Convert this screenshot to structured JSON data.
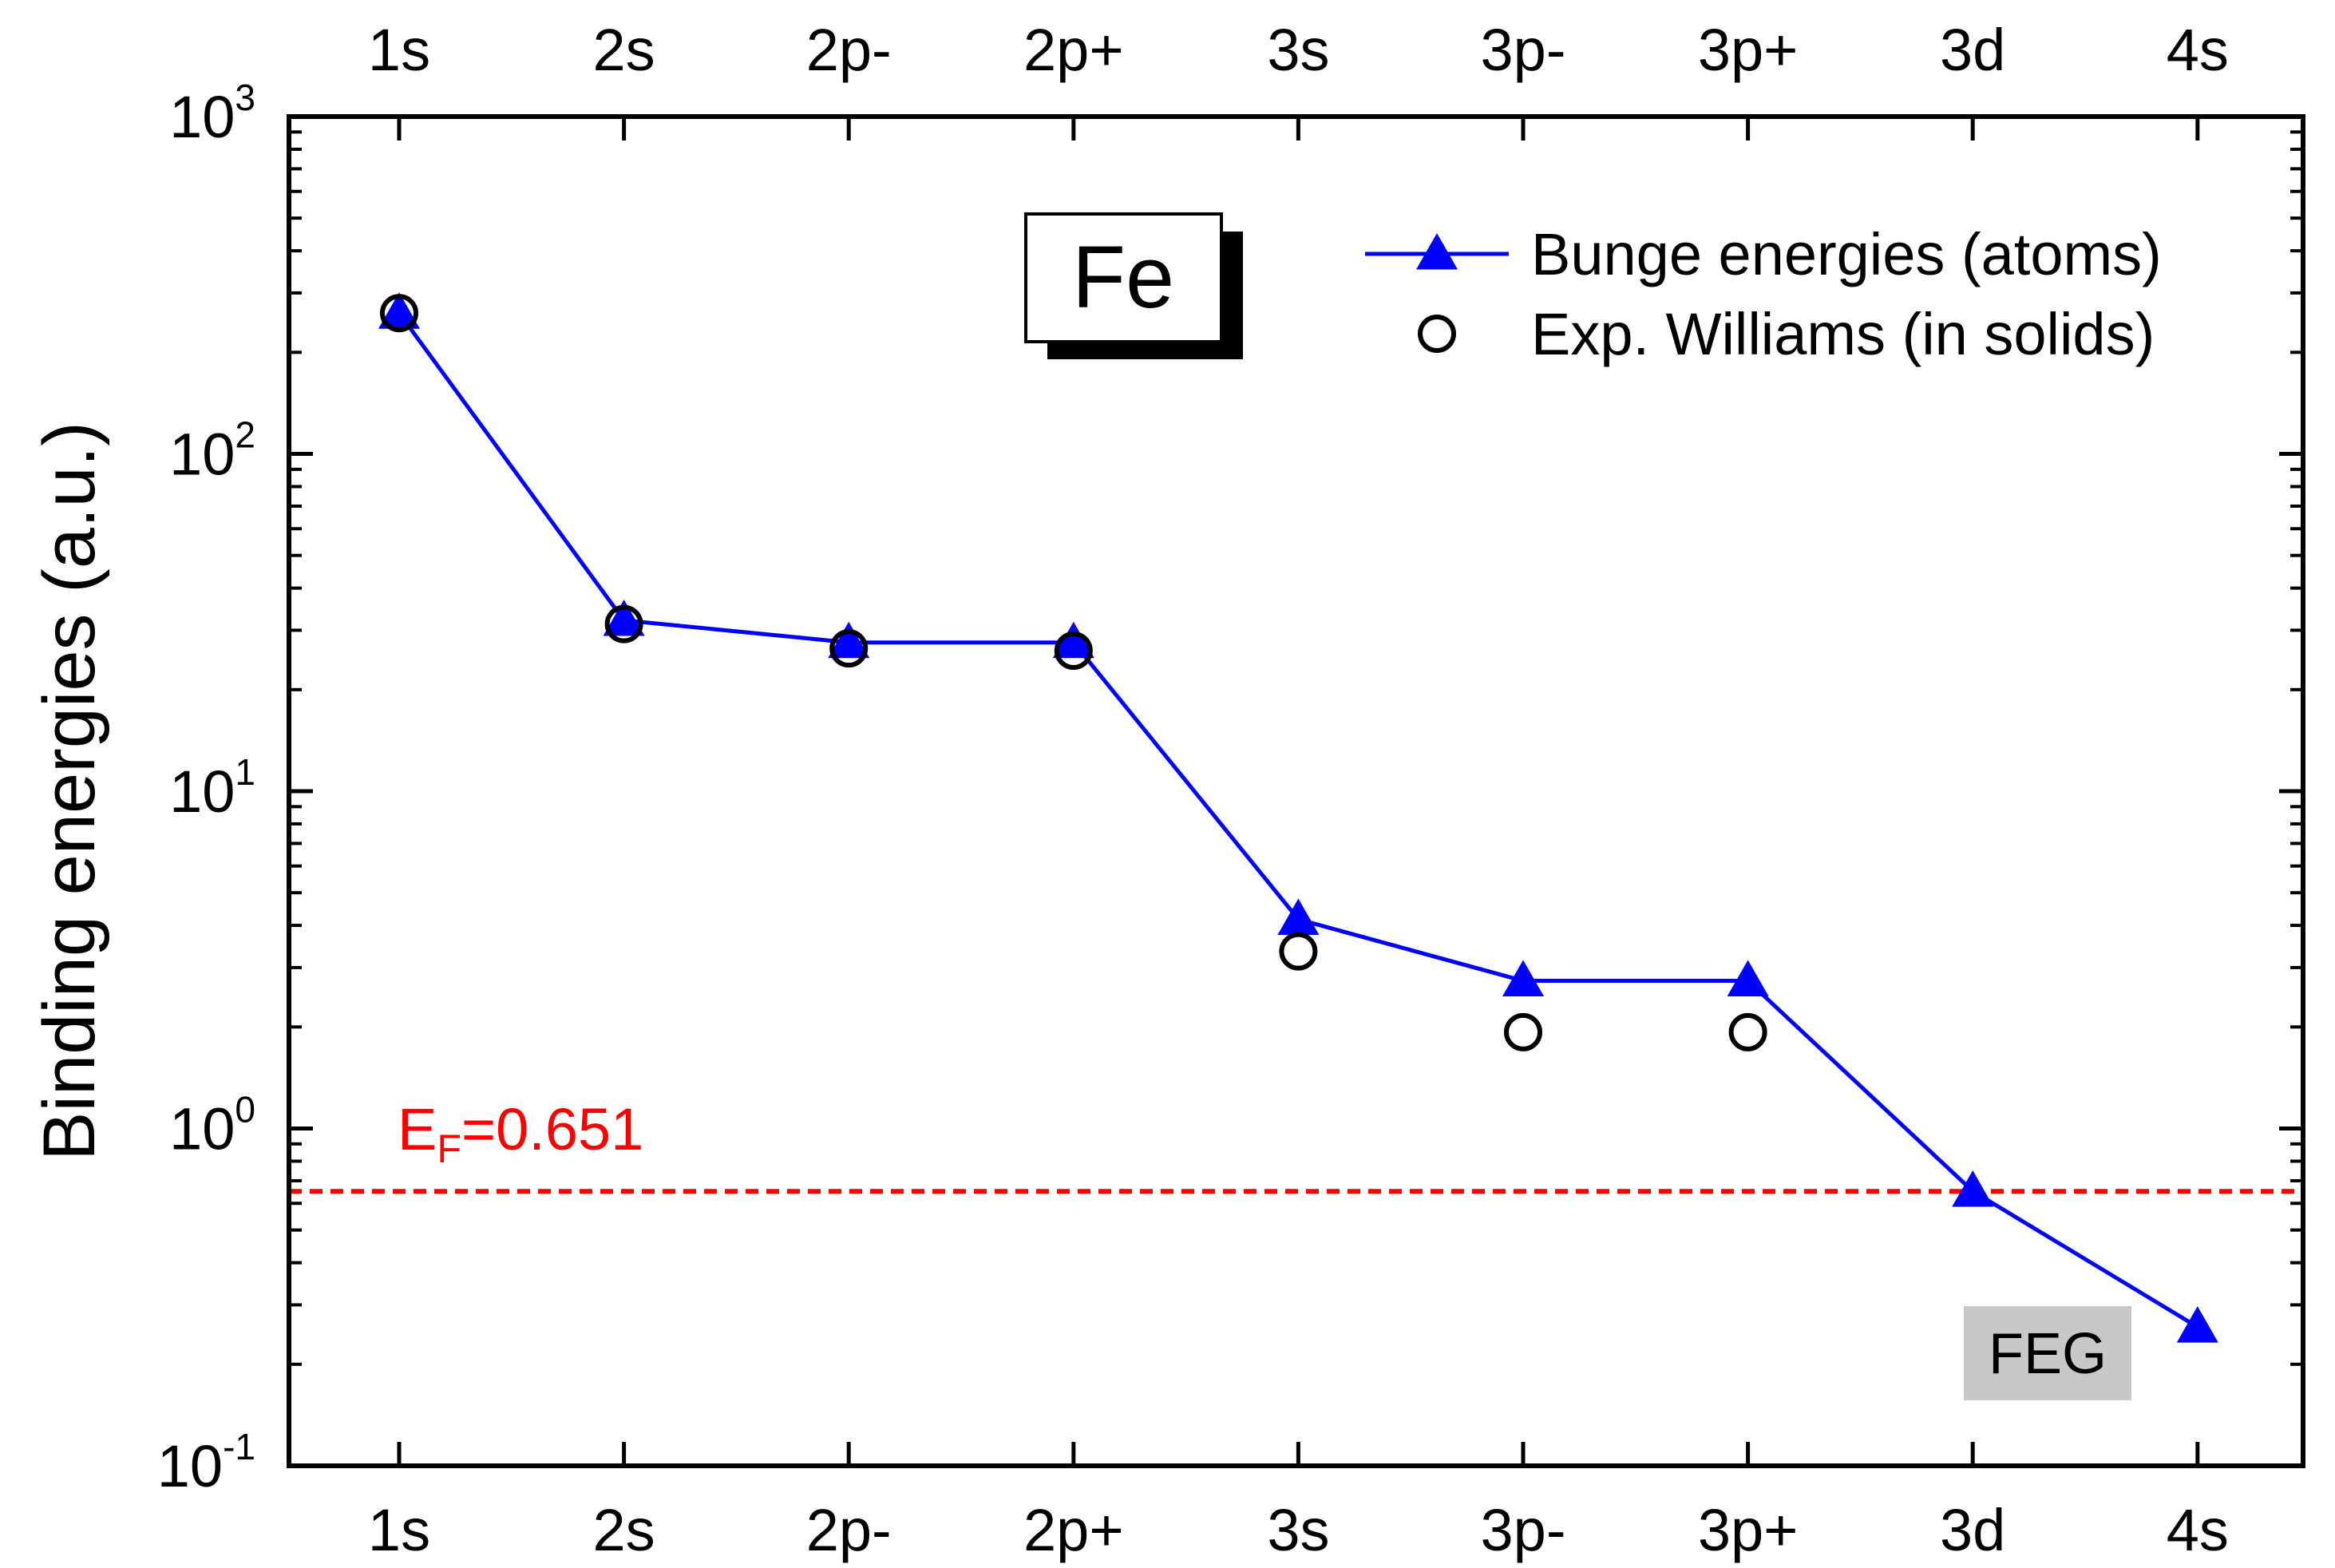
{
  "chart_data": {
    "type": "line",
    "title": "",
    "xlabel": "",
    "ylabel": "Binding energies (a.u.)",
    "yscale": "log",
    "ylim": [
      0.1,
      1000
    ],
    "categories": [
      "1s",
      "2s",
      "2p-",
      "2p+",
      "3s",
      "3p-",
      "3p+",
      "3d",
      "4s"
    ],
    "top_axis_labels": [
      "1s",
      "2s",
      "2p-",
      "2p+",
      "3s",
      "3p-",
      "3p+",
      "3d",
      "4s"
    ],
    "y_tick_labels": [
      {
        "value": 0.1,
        "base": "10",
        "exp": "-1"
      },
      {
        "value": 1,
        "base": "10",
        "exp": "0"
      },
      {
        "value": 10,
        "base": "10",
        "exp": "1"
      },
      {
        "value": 100,
        "base": "10",
        "exp": "2"
      },
      {
        "value": 1000,
        "base": "10",
        "exp": "3"
      }
    ],
    "series": [
      {
        "name": "Bunge energies (atoms)",
        "color": "#0000ff",
        "marker": "filled-triangle",
        "values": [
          261.4,
          32.1,
          27.6,
          27.6,
          4.17,
          2.74,
          2.74,
          0.652,
          0.258
        ]
      },
      {
        "name": "Exp. Williams (in solids)",
        "color": "#000000",
        "marker": "open-circle",
        "values": [
          261.4,
          31.3,
          26.5,
          26.1,
          3.35,
          1.93,
          1.93,
          null,
          null
        ]
      }
    ],
    "reference_line": {
      "value": 0.651,
      "color": "#ff0000",
      "style": "dashed",
      "label_main": "E",
      "label_sub": "F",
      "label_rest": "=0.651"
    },
    "element_label": "Fe",
    "feg_label": "FEG",
    "legend_position": "top-right",
    "grid": false
  }
}
